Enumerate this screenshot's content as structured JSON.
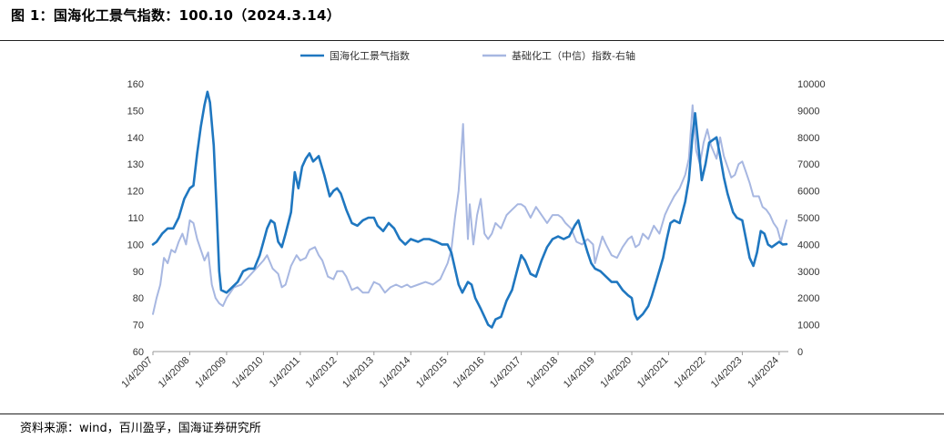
{
  "figure": {
    "title": "图 1：国海化工景气指数：100.10（2024.3.14）",
    "source": "资料来源：wind，百川盈孚，国海证券研究所"
  },
  "chart_data": {
    "type": "line",
    "x_tick_labels": [
      "1/4/2007",
      "1/4/2008",
      "1/4/2009",
      "1/4/2010",
      "1/4/2011",
      "1/4/2012",
      "1/4/2013",
      "1/4/2014",
      "1/4/2015",
      "1/4/2016",
      "1/4/2017",
      "1/4/2018",
      "1/4/2019",
      "1/4/2020",
      "1/4/2021",
      "1/4/2022",
      "1/4/2023",
      "1/4/2024"
    ],
    "x_range": [
      2007.0,
      2024.25
    ],
    "y_left": {
      "min": 60,
      "max": 160,
      "ticks": [
        60,
        70,
        80,
        90,
        100,
        110,
        120,
        130,
        140,
        150,
        160
      ]
    },
    "y_right": {
      "min": 0,
      "max": 10000,
      "ticks": [
        0,
        1000,
        2000,
        3000,
        4000,
        5000,
        6000,
        7000,
        8000,
        9000,
        10000
      ]
    },
    "legend_position": "top-center",
    "grid": false,
    "series": [
      {
        "name": "国海化工景气指数",
        "axis": "left",
        "color": "#1f77c0",
        "points": [
          [
            2007.0,
            100
          ],
          [
            2007.1,
            101
          ],
          [
            2007.25,
            104
          ],
          [
            2007.4,
            106
          ],
          [
            2007.55,
            106
          ],
          [
            2007.7,
            110
          ],
          [
            2007.85,
            117
          ],
          [
            2008.0,
            121
          ],
          [
            2008.1,
            122
          ],
          [
            2008.2,
            134
          ],
          [
            2008.3,
            144
          ],
          [
            2008.4,
            152
          ],
          [
            2008.48,
            157
          ],
          [
            2008.55,
            153
          ],
          [
            2008.65,
            137
          ],
          [
            2008.73,
            113
          ],
          [
            2008.8,
            90
          ],
          [
            2008.85,
            83
          ],
          [
            2009.0,
            82
          ],
          [
            2009.15,
            84
          ],
          [
            2009.3,
            86
          ],
          [
            2009.45,
            90
          ],
          [
            2009.6,
            91
          ],
          [
            2009.75,
            91
          ],
          [
            2009.9,
            96
          ],
          [
            2010.0,
            101
          ],
          [
            2010.1,
            106
          ],
          [
            2010.2,
            109
          ],
          [
            2010.3,
            108
          ],
          [
            2010.4,
            101
          ],
          [
            2010.5,
            99
          ],
          [
            2010.6,
            104
          ],
          [
            2010.75,
            112
          ],
          [
            2010.85,
            127
          ],
          [
            2010.95,
            121
          ],
          [
            2011.05,
            129
          ],
          [
            2011.15,
            132
          ],
          [
            2011.25,
            134
          ],
          [
            2011.35,
            131
          ],
          [
            2011.5,
            133
          ],
          [
            2011.65,
            126
          ],
          [
            2011.8,
            118
          ],
          [
            2011.9,
            120
          ],
          [
            2012.0,
            121
          ],
          [
            2012.1,
            119
          ],
          [
            2012.25,
            113
          ],
          [
            2012.4,
            108
          ],
          [
            2012.55,
            107
          ],
          [
            2012.7,
            109
          ],
          [
            2012.85,
            110
          ],
          [
            2013.0,
            110
          ],
          [
            2013.1,
            107
          ],
          [
            2013.25,
            105
          ],
          [
            2013.4,
            108
          ],
          [
            2013.55,
            106
          ],
          [
            2013.7,
            102
          ],
          [
            2013.85,
            100
          ],
          [
            2014.0,
            102
          ],
          [
            2014.2,
            101
          ],
          [
            2014.35,
            102
          ],
          [
            2014.5,
            102
          ],
          [
            2014.7,
            101
          ],
          [
            2014.85,
            100
          ],
          [
            2015.0,
            100
          ],
          [
            2015.1,
            97
          ],
          [
            2015.2,
            91
          ],
          [
            2015.3,
            85
          ],
          [
            2015.4,
            82
          ],
          [
            2015.55,
            86
          ],
          [
            2015.65,
            85
          ],
          [
            2015.75,
            80
          ],
          [
            2015.9,
            76
          ],
          [
            2016.0,
            73
          ],
          [
            2016.1,
            70
          ],
          [
            2016.2,
            69
          ],
          [
            2016.3,
            72
          ],
          [
            2016.45,
            73
          ],
          [
            2016.6,
            79
          ],
          [
            2016.75,
            83
          ],
          [
            2016.9,
            91
          ],
          [
            2017.0,
            96
          ],
          [
            2017.1,
            94
          ],
          [
            2017.25,
            89
          ],
          [
            2017.4,
            88
          ],
          [
            2017.55,
            94
          ],
          [
            2017.7,
            99
          ],
          [
            2017.85,
            102
          ],
          [
            2018.0,
            103
          ],
          [
            2018.15,
            102
          ],
          [
            2018.3,
            103
          ],
          [
            2018.45,
            107
          ],
          [
            2018.55,
            109
          ],
          [
            2018.65,
            104
          ],
          [
            2018.8,
            97
          ],
          [
            2018.9,
            93
          ],
          [
            2019.0,
            91
          ],
          [
            2019.15,
            90
          ],
          [
            2019.3,
            88
          ],
          [
            2019.45,
            86
          ],
          [
            2019.6,
            86
          ],
          [
            2019.75,
            83
          ],
          [
            2019.9,
            81
          ],
          [
            2020.0,
            80
          ],
          [
            2020.08,
            74
          ],
          [
            2020.15,
            72
          ],
          [
            2020.3,
            74
          ],
          [
            2020.45,
            77
          ],
          [
            2020.55,
            81
          ],
          [
            2020.7,
            88
          ],
          [
            2020.85,
            95
          ],
          [
            2020.95,
            102
          ],
          [
            2021.05,
            108
          ],
          [
            2021.15,
            109
          ],
          [
            2021.3,
            108
          ],
          [
            2021.45,
            116
          ],
          [
            2021.55,
            124
          ],
          [
            2021.65,
            141
          ],
          [
            2021.72,
            149
          ],
          [
            2021.8,
            138
          ],
          [
            2021.9,
            124
          ],
          [
            2022.0,
            130
          ],
          [
            2022.1,
            138
          ],
          [
            2022.2,
            139
          ],
          [
            2022.3,
            140
          ],
          [
            2022.4,
            133
          ],
          [
            2022.5,
            125
          ],
          [
            2022.6,
            119
          ],
          [
            2022.75,
            112
          ],
          [
            2022.85,
            110
          ],
          [
            2023.0,
            109
          ],
          [
            2023.1,
            102
          ],
          [
            2023.2,
            95
          ],
          [
            2023.3,
            92
          ],
          [
            2023.4,
            97
          ],
          [
            2023.5,
            105
          ],
          [
            2023.6,
            104
          ],
          [
            2023.7,
            100
          ],
          [
            2023.8,
            99
          ],
          [
            2023.9,
            100
          ],
          [
            2024.0,
            101
          ],
          [
            2024.1,
            100
          ],
          [
            2024.2,
            100.1
          ]
        ]
      },
      {
        "name": "基础化工（中信）指数-右轴",
        "axis": "right",
        "color": "#a7b7e1",
        "points": [
          [
            2007.0,
            1400
          ],
          [
            2007.1,
            2000
          ],
          [
            2007.2,
            2500
          ],
          [
            2007.3,
            3500
          ],
          [
            2007.4,
            3300
          ],
          [
            2007.5,
            3800
          ],
          [
            2007.6,
            3700
          ],
          [
            2007.7,
            4100
          ],
          [
            2007.8,
            4400
          ],
          [
            2007.9,
            4000
          ],
          [
            2008.0,
            4900
          ],
          [
            2008.1,
            4800
          ],
          [
            2008.2,
            4200
          ],
          [
            2008.3,
            3800
          ],
          [
            2008.4,
            3400
          ],
          [
            2008.5,
            3700
          ],
          [
            2008.6,
            2500
          ],
          [
            2008.7,
            2000
          ],
          [
            2008.8,
            1800
          ],
          [
            2008.9,
            1700
          ],
          [
            2009.0,
            2000
          ],
          [
            2009.2,
            2400
          ],
          [
            2009.4,
            2500
          ],
          [
            2009.6,
            2800
          ],
          [
            2009.8,
            3100
          ],
          [
            2010.0,
            3400
          ],
          [
            2010.1,
            3600
          ],
          [
            2010.25,
            3100
          ],
          [
            2010.4,
            2900
          ],
          [
            2010.5,
            2400
          ],
          [
            2010.6,
            2500
          ],
          [
            2010.75,
            3200
          ],
          [
            2010.9,
            3600
          ],
          [
            2011.0,
            3400
          ],
          [
            2011.15,
            3500
          ],
          [
            2011.25,
            3800
          ],
          [
            2011.4,
            3900
          ],
          [
            2011.5,
            3600
          ],
          [
            2011.6,
            3400
          ],
          [
            2011.75,
            2800
          ],
          [
            2011.9,
            2700
          ],
          [
            2012.0,
            3000
          ],
          [
            2012.15,
            3000
          ],
          [
            2012.25,
            2800
          ],
          [
            2012.4,
            2300
          ],
          [
            2012.55,
            2400
          ],
          [
            2012.7,
            2200
          ],
          [
            2012.85,
            2200
          ],
          [
            2013.0,
            2600
          ],
          [
            2013.15,
            2500
          ],
          [
            2013.3,
            2200
          ],
          [
            2013.45,
            2400
          ],
          [
            2013.6,
            2500
          ],
          [
            2013.75,
            2400
          ],
          [
            2013.9,
            2500
          ],
          [
            2014.0,
            2400
          ],
          [
            2014.2,
            2500
          ],
          [
            2014.4,
            2600
          ],
          [
            2014.6,
            2500
          ],
          [
            2014.8,
            2700
          ],
          [
            2015.0,
            3300
          ],
          [
            2015.1,
            3800
          ],
          [
            2015.2,
            5000
          ],
          [
            2015.3,
            6000
          ],
          [
            2015.35,
            7000
          ],
          [
            2015.42,
            8500
          ],
          [
            2015.46,
            7000
          ],
          [
            2015.5,
            5800
          ],
          [
            2015.55,
            4200
          ],
          [
            2015.6,
            5500
          ],
          [
            2015.7,
            4000
          ],
          [
            2015.8,
            5100
          ],
          [
            2015.9,
            5700
          ],
          [
            2016.0,
            4400
          ],
          [
            2016.1,
            4200
          ],
          [
            2016.2,
            4400
          ],
          [
            2016.3,
            4800
          ],
          [
            2016.45,
            4600
          ],
          [
            2016.6,
            5100
          ],
          [
            2016.75,
            5300
          ],
          [
            2016.9,
            5500
          ],
          [
            2017.0,
            5500
          ],
          [
            2017.1,
            5400
          ],
          [
            2017.25,
            5000
          ],
          [
            2017.4,
            5400
          ],
          [
            2017.55,
            5100
          ],
          [
            2017.7,
            4800
          ],
          [
            2017.85,
            5100
          ],
          [
            2018.0,
            5100
          ],
          [
            2018.1,
            5000
          ],
          [
            2018.2,
            4800
          ],
          [
            2018.35,
            4600
          ],
          [
            2018.5,
            4100
          ],
          [
            2018.65,
            4000
          ],
          [
            2018.8,
            4200
          ],
          [
            2018.95,
            4000
          ],
          [
            2019.0,
            3300
          ],
          [
            2019.1,
            3800
          ],
          [
            2019.2,
            4300
          ],
          [
            2019.3,
            4000
          ],
          [
            2019.45,
            3600
          ],
          [
            2019.6,
            3500
          ],
          [
            2019.75,
            3900
          ],
          [
            2019.9,
            4200
          ],
          [
            2020.0,
            4300
          ],
          [
            2020.1,
            3900
          ],
          [
            2020.2,
            4000
          ],
          [
            2020.3,
            4400
          ],
          [
            2020.45,
            4200
          ],
          [
            2020.6,
            4700
          ],
          [
            2020.75,
            4400
          ],
          [
            2020.9,
            5100
          ],
          [
            2021.0,
            5400
          ],
          [
            2021.15,
            5800
          ],
          [
            2021.3,
            6100
          ],
          [
            2021.45,
            6600
          ],
          [
            2021.55,
            7200
          ],
          [
            2021.65,
            9200
          ],
          [
            2021.75,
            7500
          ],
          [
            2021.85,
            7000
          ],
          [
            2021.95,
            7800
          ],
          [
            2022.05,
            8300
          ],
          [
            2022.15,
            7700
          ],
          [
            2022.3,
            7200
          ],
          [
            2022.4,
            8000
          ],
          [
            2022.5,
            7300
          ],
          [
            2022.6,
            6900
          ],
          [
            2022.7,
            6500
          ],
          [
            2022.8,
            6600
          ],
          [
            2022.9,
            7000
          ],
          [
            2023.0,
            7100
          ],
          [
            2023.1,
            6700
          ],
          [
            2023.2,
            6300
          ],
          [
            2023.3,
            5800
          ],
          [
            2023.45,
            5800
          ],
          [
            2023.55,
            5400
          ],
          [
            2023.65,
            5300
          ],
          [
            2023.75,
            5100
          ],
          [
            2023.85,
            4800
          ],
          [
            2023.95,
            4600
          ],
          [
            2024.05,
            4100
          ],
          [
            2024.12,
            4500
          ],
          [
            2024.2,
            4900
          ]
        ]
      }
    ]
  }
}
